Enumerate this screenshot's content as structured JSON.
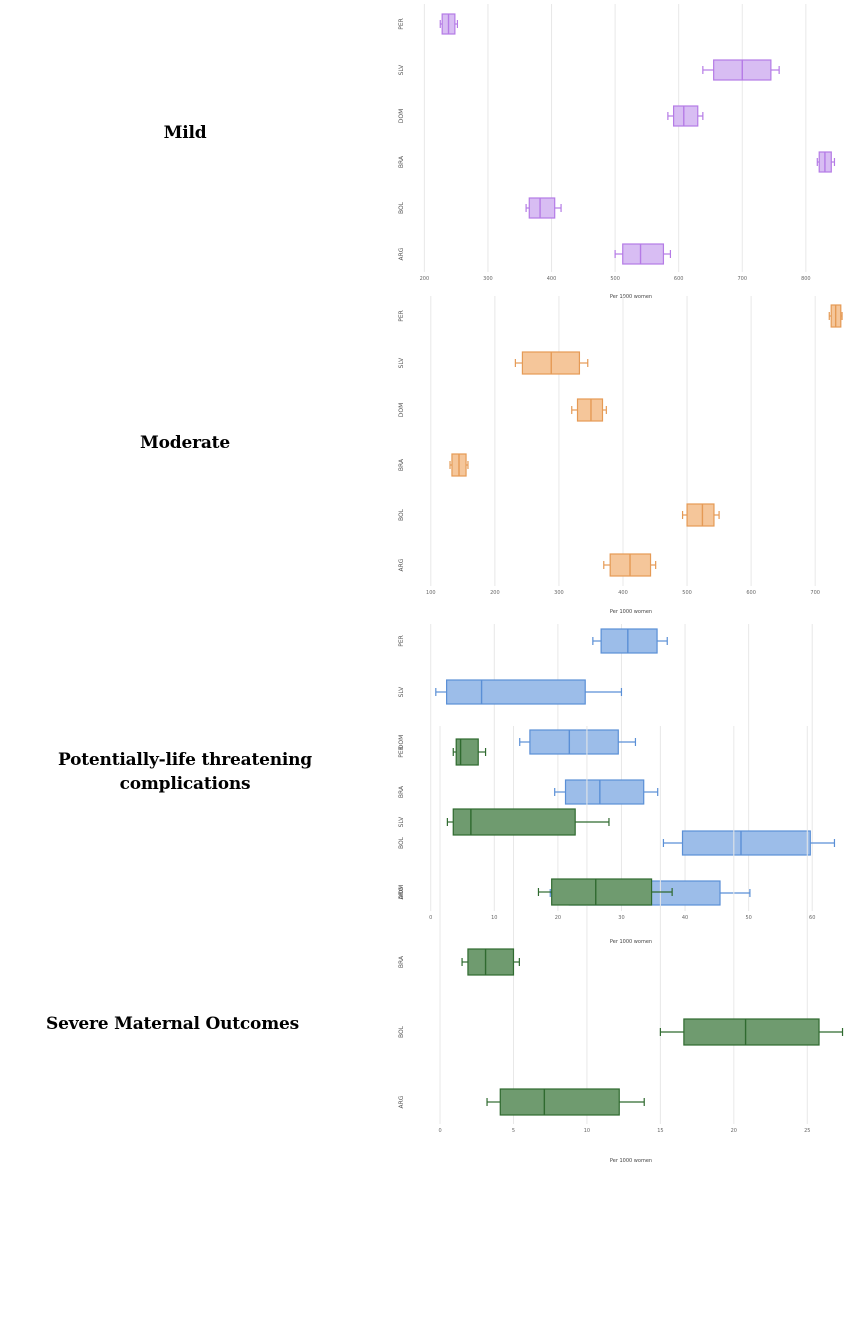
{
  "labels": {
    "mild": "Mild",
    "moderate": "Moderate",
    "plt_line1": "Potentially-life threatening",
    "plt_line2": "complications",
    "smo": "Severe Maternal Outcomes"
  },
  "chart_data": [
    {
      "type": "box",
      "name": "Mild",
      "color": "#b57be6",
      "fill": "#d8bdf3",
      "xlabel": "Per 1000 women",
      "xlim": [
        190,
        860
      ],
      "xticks": [
        200,
        300,
        400,
        500,
        600,
        700,
        800
      ],
      "categories": [
        "PER",
        "SLV",
        "DOM",
        "BRA",
        "BOL",
        "ARG"
      ],
      "boxes": [
        {
          "cat": "PER",
          "whislo": 225,
          "q1": 228,
          "med": 238,
          "q3": 248,
          "whishi": 252
        },
        {
          "cat": "SLV",
          "whislo": 638,
          "q1": 655,
          "med": 700,
          "q3": 745,
          "whishi": 758
        },
        {
          "cat": "DOM",
          "whislo": 583,
          "q1": 592,
          "med": 608,
          "q3": 630,
          "whishi": 638
        },
        {
          "cat": "BRA",
          "whislo": 818,
          "q1": 821,
          "med": 830,
          "q3": 840,
          "whishi": 845
        },
        {
          "cat": "BOL",
          "whislo": 360,
          "q1": 365,
          "med": 382,
          "q3": 405,
          "whishi": 415
        },
        {
          "cat": "ARG",
          "whislo": 500,
          "q1": 512,
          "med": 540,
          "q3": 576,
          "whishi": 587
        }
      ]
    },
    {
      "type": "box",
      "name": "Moderate",
      "color": "#e59a55",
      "fill": "#f5c69a",
      "xlabel": "Per 1000 women",
      "xlim": [
        80,
        745
      ],
      "xticks": [
        100,
        200,
        300,
        400,
        500,
        600,
        700
      ],
      "categories": [
        "PER",
        "SLV",
        "DOM",
        "BRA",
        "BOL",
        "ARG"
      ],
      "boxes": [
        {
          "cat": "PER",
          "whislo": 722,
          "q1": 725,
          "med": 732,
          "q3": 740,
          "whishi": 742
        },
        {
          "cat": "SLV",
          "whislo": 232,
          "q1": 243,
          "med": 288,
          "q3": 332,
          "whishi": 345
        },
        {
          "cat": "DOM",
          "whislo": 320,
          "q1": 329,
          "med": 350,
          "q3": 368,
          "whishi": 374
        },
        {
          "cat": "BRA",
          "whislo": 130,
          "q1": 133,
          "med": 144,
          "q3": 155,
          "whishi": 158
        },
        {
          "cat": "BOL",
          "whislo": 493,
          "q1": 500,
          "med": 524,
          "q3": 542,
          "whishi": 550
        },
        {
          "cat": "ARG",
          "whislo": 370,
          "q1": 380,
          "med": 411,
          "q3": 443,
          "whishi": 451
        }
      ]
    },
    {
      "type": "box",
      "name": "Potentially-life threatening complications",
      "color": "#5a8fd6",
      "fill": "#9cbde9",
      "xlabel": "Per 1000 women",
      "xlim": [
        -2,
        65
      ],
      "xticks": [
        0,
        10,
        20,
        30,
        40,
        50,
        60
      ],
      "categories": [
        "PER",
        "SLV",
        "DOM",
        "BRA",
        "BOL",
        "ARG"
      ],
      "boxes": [
        {
          "cat": "PER",
          "whislo": 25.5,
          "q1": 26.8,
          "med": 31,
          "q3": 35.6,
          "whishi": 37.2
        },
        {
          "cat": "SLV",
          "whislo": 0.8,
          "q1": 2.5,
          "med": 8,
          "q3": 24.3,
          "whishi": 30
        },
        {
          "cat": "DOM",
          "whislo": 14,
          "q1": 15.6,
          "med": 21.8,
          "q3": 29.5,
          "whishi": 32.2
        },
        {
          "cat": "BRA",
          "whislo": 19.5,
          "q1": 21.2,
          "med": 26.6,
          "q3": 33.5,
          "whishi": 35.7
        },
        {
          "cat": "BOL",
          "whislo": 36.6,
          "q1": 39.6,
          "med": 48.8,
          "q3": 59.7,
          "whishi": 63.5
        },
        {
          "cat": "ARG",
          "whislo": 18.8,
          "q1": 21.8,
          "med": 31.6,
          "q3": 45.5,
          "whishi": 50.2
        }
      ]
    },
    {
      "type": "box",
      "name": "Severe Maternal Outcomes",
      "color": "#2f6a2f",
      "fill": "#6f9b6f",
      "xlabel": "Per 1000 women",
      "xlim": [
        -1.5,
        27.5
      ],
      "xticks": [
        0,
        5,
        10,
        15,
        20,
        25
      ],
      "categories": [
        "PER",
        "SLV",
        "DOM",
        "BRA",
        "BOL",
        "ARG"
      ],
      "boxes": [
        {
          "cat": "PER",
          "whislo": 0.9,
          "q1": 1.1,
          "med": 1.4,
          "q3": 2.6,
          "whishi": 3.1
        },
        {
          "cat": "SLV",
          "whislo": 0.5,
          "q1": 0.9,
          "med": 2.1,
          "q3": 9.2,
          "whishi": 11.5
        },
        {
          "cat": "DOM",
          "whislo": 6.7,
          "q1": 7.6,
          "med": 10.6,
          "q3": 14.4,
          "whishi": 15.8
        },
        {
          "cat": "BRA",
          "whislo": 1.5,
          "q1": 1.9,
          "med": 3.1,
          "q3": 5.0,
          "whishi": 5.4
        },
        {
          "cat": "BOL",
          "whislo": 15,
          "q1": 16.6,
          "med": 20.8,
          "q3": 25.8,
          "whishi": 27.4
        },
        {
          "cat": "ARG",
          "whislo": 3.2,
          "q1": 4.1,
          "med": 7.1,
          "q3": 12.2,
          "whishi": 13.9
        }
      ]
    }
  ]
}
